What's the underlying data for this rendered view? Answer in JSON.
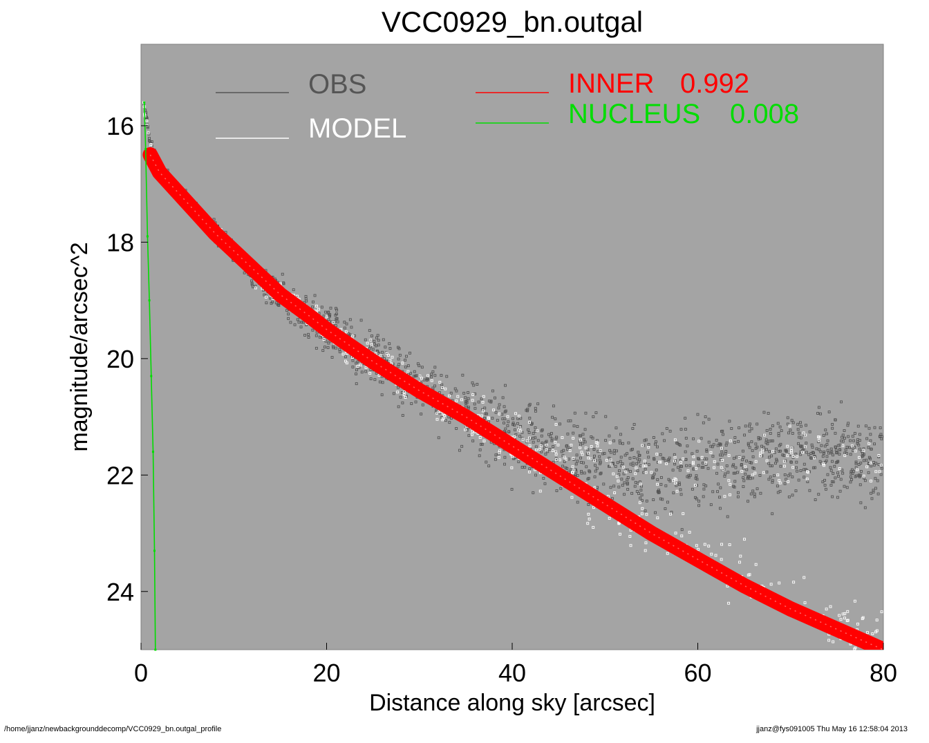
{
  "chart_data": {
    "type": "scatter",
    "title": "VCC0929_bn.outgal",
    "xlabel": "Distance along sky [arcsec]",
    "ylabel": "magnitude/arcsec^2",
    "xlim": [
      0,
      80
    ],
    "ylim": [
      25,
      14.6
    ],
    "y_inverted": true,
    "x_ticks": [
      "0",
      "20",
      "40",
      "60",
      "80"
    ],
    "y_ticks": [
      "16",
      "18",
      "20",
      "22",
      "24"
    ],
    "plot_background": "#a4a4a4",
    "grid": false,
    "legend": [
      {
        "label": "OBS",
        "color": "#555555",
        "placement": "top-left"
      },
      {
        "label": "MODEL",
        "color": "#ffffff",
        "placement": "top-left"
      },
      {
        "label": "INNER",
        "value": "0.992",
        "color": "#ff0000",
        "placement": "top-center"
      },
      {
        "label": "NUCLEUS",
        "value": "0.008",
        "color": "#00dd00",
        "placement": "top-center"
      }
    ],
    "series": [
      {
        "name": "OBS",
        "color": "#555555",
        "kind": "scatter",
        "x": [
          0.3,
          1,
          2,
          4,
          6,
          8,
          10,
          12,
          15,
          18,
          20,
          25,
          30,
          35,
          40,
          45,
          50,
          55,
          60,
          65,
          70,
          75,
          80
        ],
        "y": [
          15.6,
          16.3,
          16.7,
          17.1,
          17.5,
          17.8,
          18.2,
          18.5,
          18.9,
          19.3,
          19.5,
          20.0,
          20.5,
          20.9,
          21.3,
          21.6,
          21.8,
          21.9,
          21.9,
          21.8,
          21.7,
          21.7,
          21.7
        ]
      },
      {
        "name": "MODEL",
        "color": "#ffffff",
        "kind": "scatter",
        "x": [
          0.3,
          1,
          2,
          4,
          6,
          8,
          10,
          12,
          15,
          18,
          20,
          25,
          30,
          35,
          40,
          45,
          50,
          55,
          60,
          65,
          70,
          75,
          80
        ],
        "y": [
          15.7,
          16.3,
          16.75,
          17.15,
          17.5,
          17.85,
          18.15,
          18.45,
          18.9,
          19.25,
          19.5,
          20.05,
          20.55,
          21.0,
          21.5,
          22.0,
          22.5,
          23.0,
          23.4,
          23.8,
          24.2,
          24.5,
          24.75
        ]
      },
      {
        "name": "INNER",
        "color": "#ff0000",
        "kind": "band",
        "x": [
          1,
          2,
          4,
          6,
          8,
          10,
          12,
          15,
          18,
          20,
          25,
          30,
          35,
          40,
          45,
          50,
          55,
          60,
          65,
          70,
          75,
          80
        ],
        "y": [
          16.5,
          16.8,
          17.15,
          17.5,
          17.85,
          18.15,
          18.45,
          18.9,
          19.25,
          19.5,
          20.05,
          20.55,
          21.0,
          21.5,
          22.0,
          22.5,
          23.0,
          23.45,
          23.9,
          24.3,
          24.65,
          25.0
        ]
      },
      {
        "name": "NUCLEUS",
        "color": "#00dd00",
        "kind": "line",
        "x": [
          0.35,
          0.5,
          0.7,
          0.9,
          1.1,
          1.3,
          1.45,
          1.55
        ],
        "y": [
          15.6,
          16.4,
          17.9,
          19.0,
          20.3,
          21.6,
          23.3,
          25.0
        ]
      }
    ]
  },
  "footer": {
    "path": "/home/jjanz/newbackgrounddecomp/VCC0929_bn.outgal_profile",
    "stamp": "jjanz@fys091005  Thu May 16 12:58:04 2013"
  }
}
